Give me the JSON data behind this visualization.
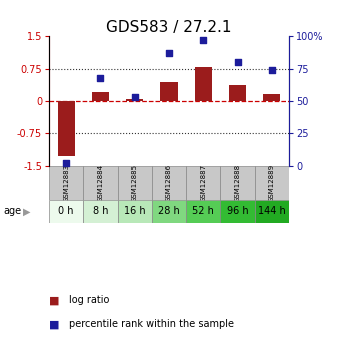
{
  "title": "GDS583 / 27.2.1",
  "samples": [
    "GSM12883",
    "GSM12884",
    "GSM12885",
    "GSM12886",
    "GSM12887",
    "GSM12888",
    "GSM12889"
  ],
  "ages": [
    "0 h",
    "8 h",
    "16 h",
    "28 h",
    "52 h",
    "96 h",
    "144 h"
  ],
  "log_ratio": [
    -1.28,
    0.22,
    0.04,
    0.45,
    0.78,
    0.38,
    0.16
  ],
  "percentile_rank": [
    2,
    68,
    53,
    87,
    97,
    80,
    74
  ],
  "ylim_left": [
    -1.5,
    1.5
  ],
  "ylim_right": [
    0,
    100
  ],
  "yticks_left": [
    -1.5,
    -0.75,
    0,
    0.75,
    1.5
  ],
  "yticks_right": [
    0,
    25,
    50,
    75,
    100
  ],
  "ytick_labels_left": [
    "-1.5",
    "-0.75",
    "0",
    "0.75",
    "1.5"
  ],
  "ytick_labels_right": [
    "0",
    "25",
    "50",
    "75",
    "100%"
  ],
  "bar_color": "#9b1c1c",
  "dot_color": "#1c1c9b",
  "hline_color": "#cc0000",
  "dotted_color": "#333333",
  "bg_color": "#ffffff",
  "sample_bg": "#c8c8c8",
  "age_greens": [
    "#edfaed",
    "#d4f0d4",
    "#b8e8b8",
    "#80d880",
    "#55cc55",
    "#33bb33",
    "#22aa22"
  ],
  "title_fontsize": 11,
  "tick_fontsize": 7,
  "label_fontsize": 7,
  "legend_fontsize": 7,
  "gsm_fontsize": 5,
  "age_fontsize": 7
}
